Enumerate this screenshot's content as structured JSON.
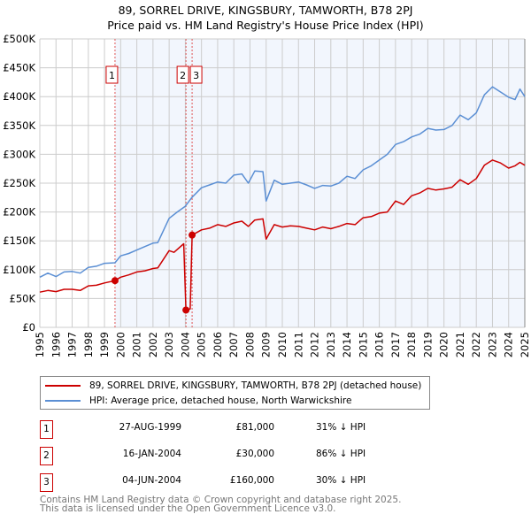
{
  "title": "89, SORREL DRIVE, KINGSBURY, TAMWORTH, B78 2PJ",
  "subtitle": "Price paid vs. HM Land Registry's House Price Index (HPI)",
  "chart_data": {
    "type": "line",
    "title": "89, SORREL DRIVE, KINGSBURY, TAMWORTH, B78 2PJ",
    "subtitle": "Price paid vs. HM Land Registry's House Price Index (HPI)",
    "xlim": [
      1995,
      2025
    ],
    "ylim": [
      0,
      500000
    ],
    "grid": true,
    "x_ticks": [
      "1995",
      "1996",
      "1997",
      "1998",
      "1999",
      "2000",
      "2001",
      "2002",
      "2003",
      "2004",
      "2005",
      "2006",
      "2007",
      "2008",
      "2009",
      "2010",
      "2011",
      "2012",
      "2013",
      "2014",
      "2015",
      "2016",
      "2017",
      "2018",
      "2019",
      "2020",
      "2021",
      "2022",
      "2023",
      "2024",
      "2025"
    ],
    "y_ticks": [
      {
        "v": 0,
        "label": "£0"
      },
      {
        "v": 50000,
        "label": "£50K"
      },
      {
        "v": 100000,
        "label": "£100K"
      },
      {
        "v": 150000,
        "label": "£150K"
      },
      {
        "v": 200000,
        "label": "£200K"
      },
      {
        "v": 250000,
        "label": "£250K"
      },
      {
        "v": 300000,
        "label": "£300K"
      },
      {
        "v": 350000,
        "label": "£350K"
      },
      {
        "v": 400000,
        "label": "£400K"
      },
      {
        "v": 450000,
        "label": "£450K"
      },
      {
        "v": 500000,
        "label": "£500K"
      }
    ],
    "shaded_from": 1999.65,
    "series": [
      {
        "name": "89, SORREL DRIVE, KINGSBURY, TAMWORTH, B78 2PJ (detached house)",
        "color": "#cc0000",
        "x": [
          1995,
          1995.5,
          1996,
          1996.5,
          1997,
          1997.5,
          1998,
          1998.5,
          1999,
          1999.65,
          2000,
          2000.5,
          2001,
          2001.5,
          2002,
          2002.3,
          2003,
          2003.3,
          2003.9,
          2004.04,
          2004.3,
          2004.42,
          2005,
          2005.5,
          2006,
          2006.5,
          2007,
          2007.5,
          2007.9,
          2008.3,
          2008.8,
          2009,
          2009.5,
          2010,
          2010.5,
          2011,
          2011.5,
          2012,
          2012.5,
          2013,
          2013.5,
          2014,
          2014.5,
          2015,
          2015.5,
          2016,
          2016.5,
          2017,
          2017.5,
          2018,
          2018.5,
          2019,
          2019.5,
          2020,
          2020.5,
          2021,
          2021.5,
          2022,
          2022.5,
          2023,
          2023.5,
          2024,
          2024.4,
          2024.7,
          2025
        ],
        "y": [
          61000,
          64000,
          62000,
          66000,
          66000,
          64000,
          72000,
          73000,
          77000,
          81000,
          87000,
          91000,
          96000,
          98000,
          102000,
          103000,
          133000,
          130000,
          145000,
          30000,
          32000,
          160000,
          169000,
          172000,
          178000,
          175000,
          181000,
          184000,
          175000,
          186000,
          188000,
          153000,
          178000,
          174000,
          176000,
          175000,
          172000,
          169000,
          174000,
          171000,
          175000,
          180000,
          178000,
          190000,
          192000,
          198000,
          200000,
          219000,
          213000,
          228000,
          233000,
          241000,
          238000,
          240000,
          243000,
          256000,
          248000,
          258000,
          281000,
          290000,
          285000,
          276000,
          280000,
          286000,
          281000
        ]
      },
      {
        "name": "HPI: Average price, detached house, North Warwickshire",
        "color": "#5b8fd4",
        "x": [
          1995,
          1995.5,
          1996,
          1996.5,
          1997,
          1997.5,
          1998,
          1998.5,
          1999,
          1999.65,
          2000,
          2000.5,
          2001,
          2001.5,
          2002,
          2002.3,
          2003,
          2003.5,
          2004,
          2004.4,
          2005,
          2005.5,
          2006,
          2006.5,
          2007,
          2007.5,
          2007.9,
          2008.3,
          2008.8,
          2009,
          2009.5,
          2010,
          2010.5,
          2011,
          2011.5,
          2012,
          2012.5,
          2013,
          2013.5,
          2014,
          2014.5,
          2015,
          2015.5,
          2016,
          2016.5,
          2017,
          2017.5,
          2018,
          2018.5,
          2019,
          2019.5,
          2020,
          2020.5,
          2021,
          2021.5,
          2022,
          2022.5,
          2023,
          2023.5,
          2024,
          2024.4,
          2024.7,
          2025
        ],
        "y": [
          87000,
          94000,
          88000,
          96000,
          97000,
          94000,
          104000,
          106000,
          111000,
          112000,
          124000,
          128000,
          134000,
          140000,
          146000,
          147000,
          189000,
          200000,
          210000,
          225000,
          242000,
          247000,
          252000,
          250000,
          264000,
          266000,
          250000,
          271000,
          270000,
          219000,
          255000,
          248000,
          250000,
          252000,
          247000,
          241000,
          246000,
          245000,
          250000,
          262000,
          258000,
          273000,
          280000,
          290000,
          300000,
          317000,
          322000,
          330000,
          335000,
          345000,
          342000,
          343000,
          350000,
          368000,
          360000,
          372000,
          403000,
          417000,
          408000,
          399000,
          395000,
          413000,
          400000
        ]
      }
    ],
    "transactions": [
      {
        "id": "1",
        "x": 1999.65,
        "price": 81000
      },
      {
        "id": "2",
        "x": 2004.04,
        "price": 30000
      },
      {
        "id": "3",
        "x": 2004.42,
        "price": 160000
      }
    ]
  },
  "legend": [
    {
      "label": "89, SORREL DRIVE, KINGSBURY, TAMWORTH, B78 2PJ (detached house)",
      "color": "#cc0000"
    },
    {
      "label": "HPI: Average price, detached house, North Warwickshire",
      "color": "#5b8fd4"
    }
  ],
  "table": [
    {
      "id": "1",
      "date": "27-AUG-1999",
      "price": "£81,000",
      "hpi": "31% ↓ HPI"
    },
    {
      "id": "2",
      "date": "16-JAN-2004",
      "price": "£30,000",
      "hpi": "86% ↓ HPI"
    },
    {
      "id": "3",
      "date": "04-JUN-2004",
      "price": "£160,000",
      "hpi": "30% ↓ HPI"
    }
  ],
  "footer": {
    "line1": "Contains HM Land Registry data © Crown copyright and database right 2025.",
    "line2": "This data is licensed under the Open Government Licence v3.0."
  }
}
